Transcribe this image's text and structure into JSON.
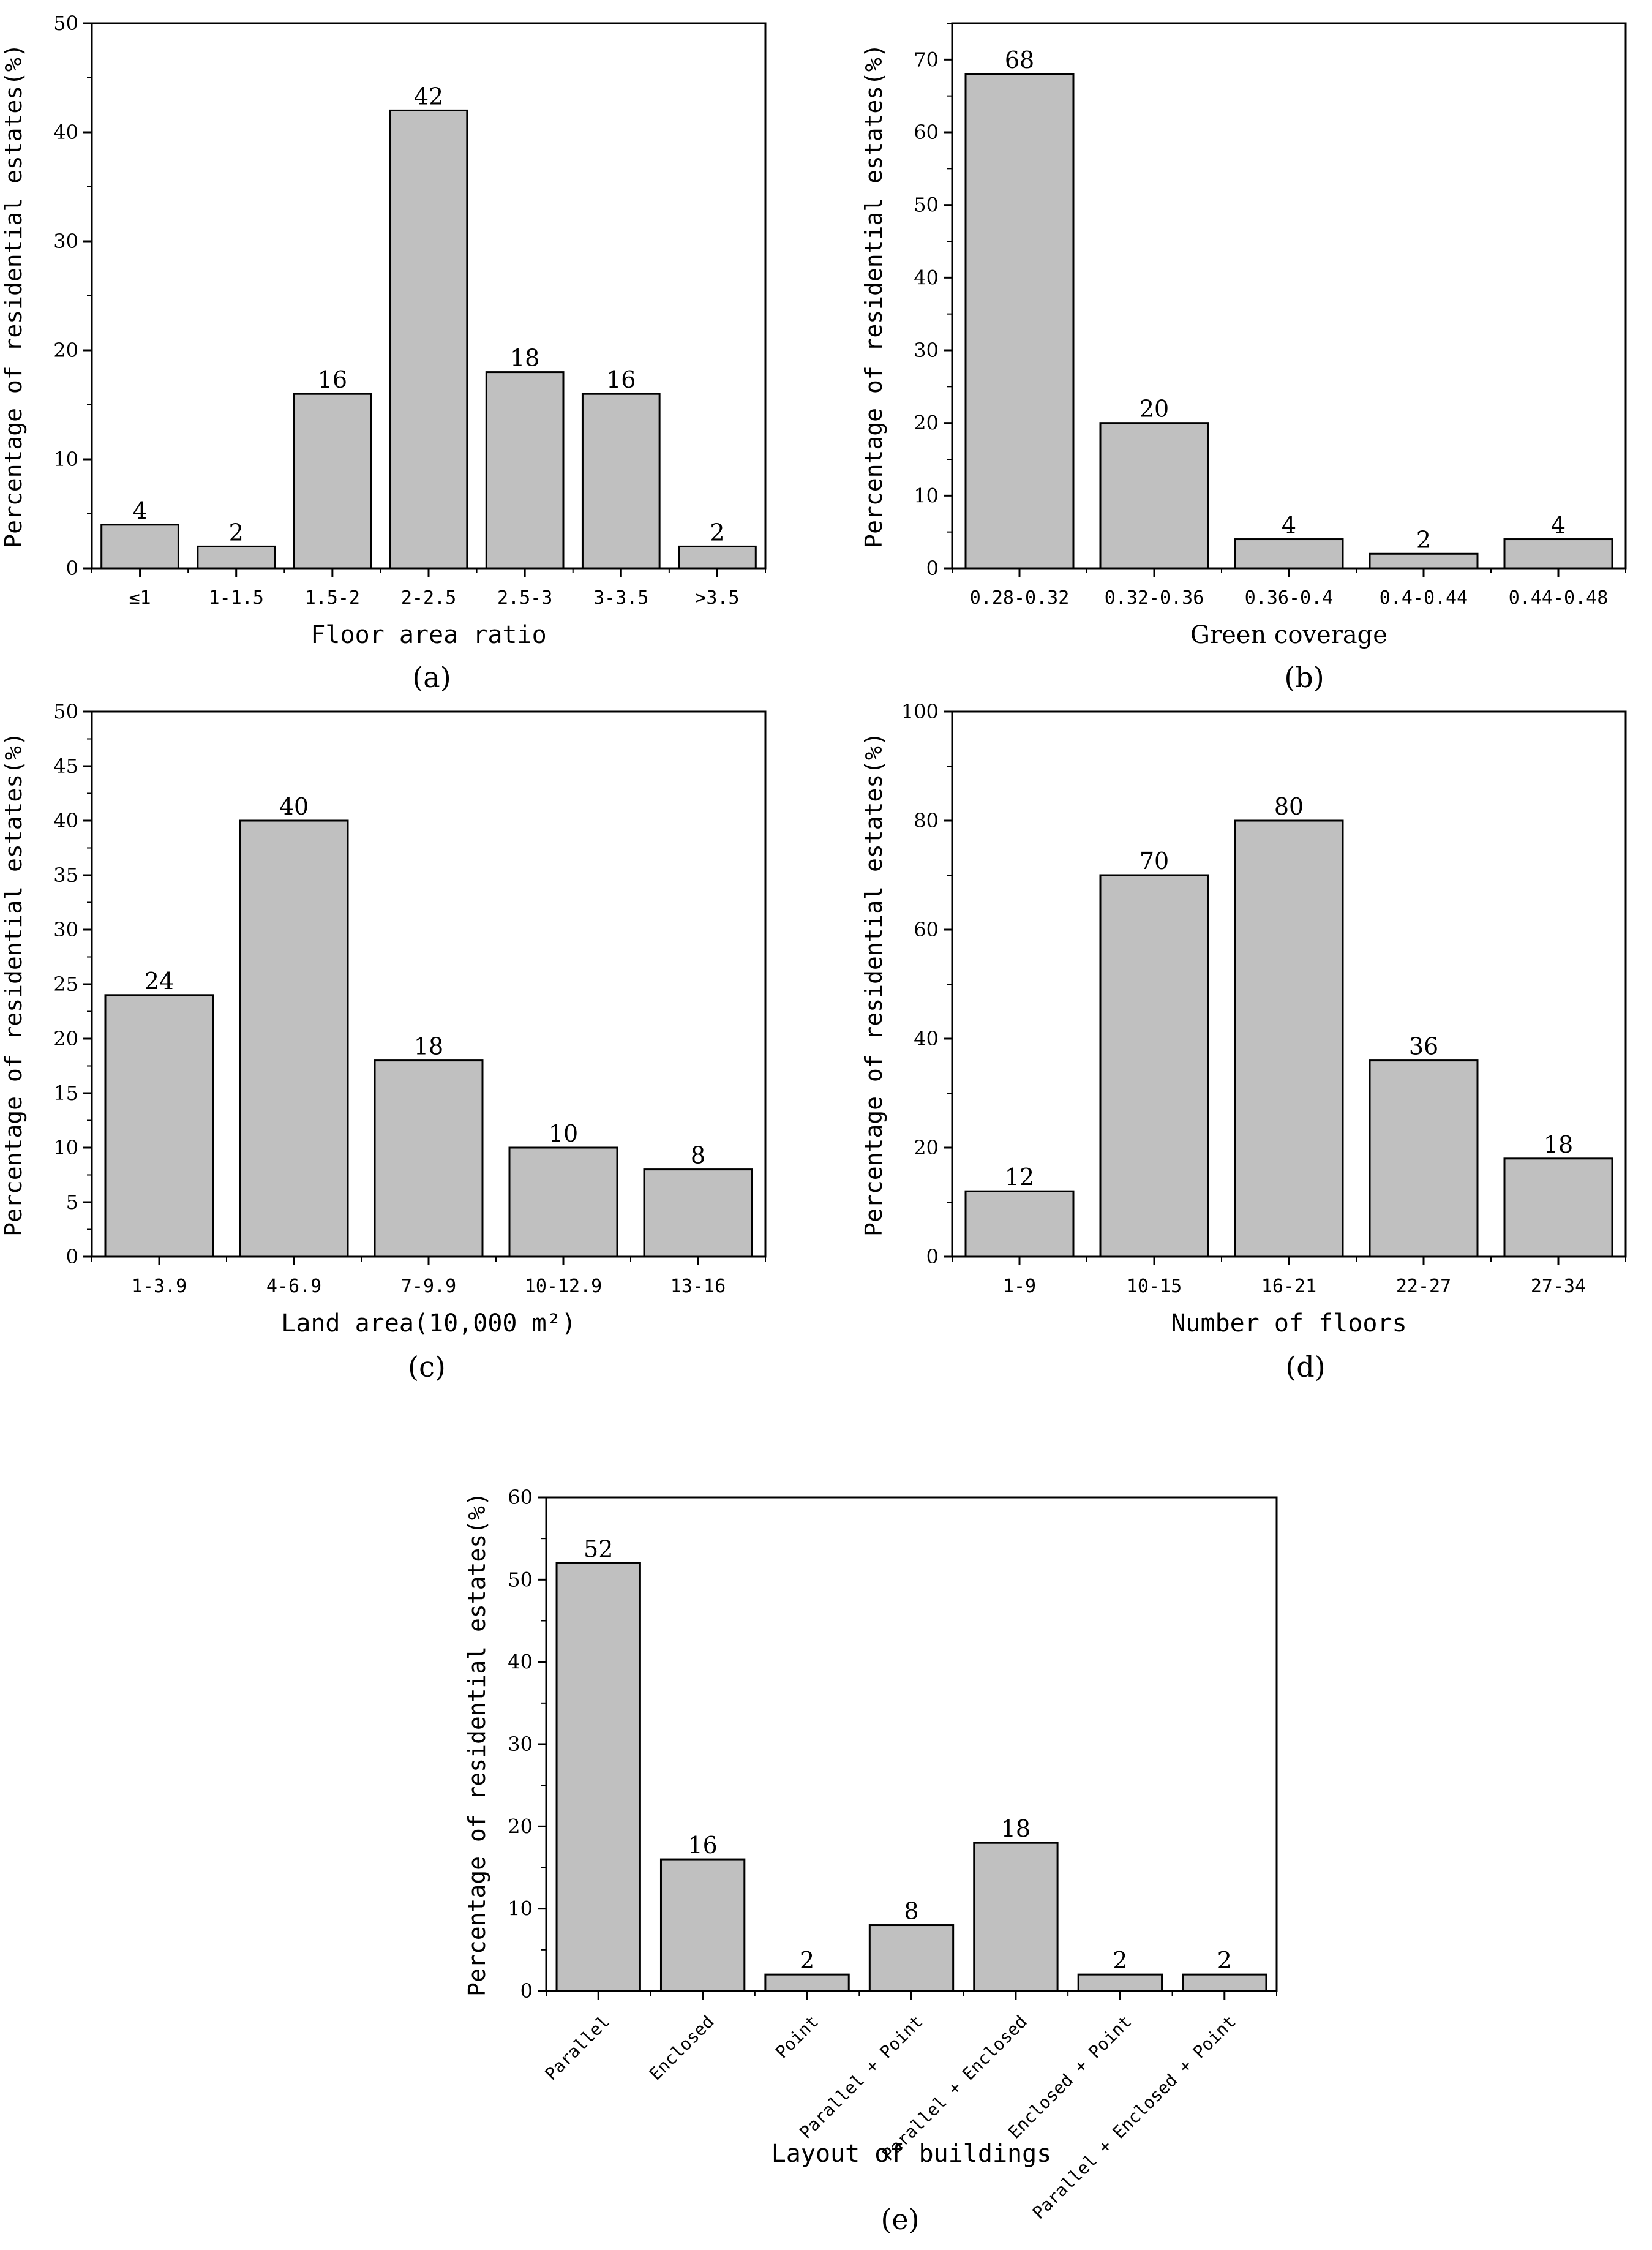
{
  "chart_data": [
    {
      "id": "a",
      "type": "bar",
      "categories": [
        "≤1",
        "1-1.5",
        "1.5-2",
        "2-2.5",
        "2.5-3",
        "3-3.5",
        ">3.5"
      ],
      "values": [
        4,
        2,
        16,
        42,
        18,
        16,
        2
      ],
      "xlabel": "Floor area ratio",
      "ylabel": "Percentage of residential estates(%)",
      "ylim": [
        0,
        50
      ],
      "yticks": [
        0,
        10,
        20,
        30,
        40,
        50
      ],
      "caption": "(a)"
    },
    {
      "id": "b",
      "type": "bar",
      "categories": [
        "0.28-0.32",
        "0.32-0.36",
        "0.36-0.4",
        "0.4-0.44",
        "0.44-0.48"
      ],
      "values": [
        68,
        20,
        4,
        2,
        4
      ],
      "xlabel": "Green coverage",
      "ylabel": "Percentage of residential estates(%)",
      "ylim": [
        0,
        75
      ],
      "yticks": [
        0,
        10,
        20,
        30,
        40,
        50,
        60,
        70
      ],
      "caption": "(b)"
    },
    {
      "id": "c",
      "type": "bar",
      "categories": [
        "1-3.9",
        "4-6.9",
        "7-9.9",
        "10-12.9",
        "13-16"
      ],
      "values": [
        24,
        40,
        18,
        10,
        8
      ],
      "xlabel": "Land area(10,000 m²)",
      "ylabel": "Percentage of residential estates(%)",
      "ylim": [
        0,
        50
      ],
      "yticks": [
        0,
        5,
        10,
        15,
        20,
        25,
        30,
        35,
        40,
        45,
        50
      ],
      "caption": "(c)"
    },
    {
      "id": "d",
      "type": "bar",
      "categories": [
        "1-9",
        "10-15",
        "16-21",
        "22-27",
        "27-34"
      ],
      "values": [
        12,
        70,
        80,
        36,
        18
      ],
      "xlabel": "Number of floors",
      "ylabel": "Percentage of residential estates(%)",
      "ylim": [
        0,
        100
      ],
      "yticks": [
        0,
        20,
        40,
        60,
        80,
        100
      ],
      "caption": "(d)"
    },
    {
      "id": "e",
      "type": "bar",
      "categories": [
        "Parallel",
        "Enclosed",
        "Point",
        "Parallel + Point",
        "Parallel + Enclosed",
        "Enclosed + Point",
        "Parallel + Enclosed + Point"
      ],
      "values": [
        52,
        16,
        2,
        8,
        18,
        2,
        2
      ],
      "xlabel": "Layout of buildings",
      "ylabel": "Percentage of residential estates(%)",
      "ylim": [
        0,
        60
      ],
      "yticks": [
        0,
        10,
        20,
        30,
        40,
        50,
        60
      ],
      "caption": "(e)"
    }
  ]
}
